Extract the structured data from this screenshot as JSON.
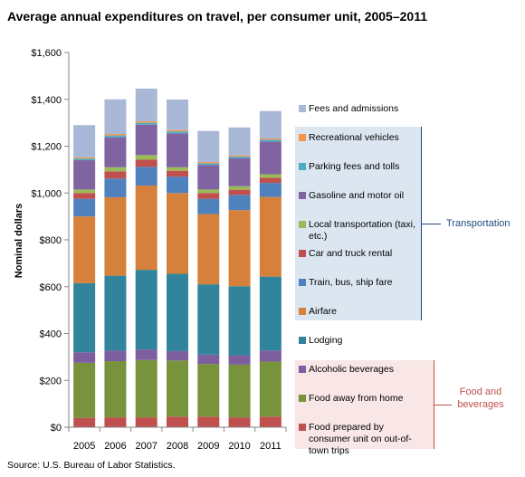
{
  "title": "Average annual expenditures on travel, per consumer unit, 2005–2011",
  "source": "Source: U.S. Bureau of Labor Statistics.",
  "groups": {
    "transportation": "Transportation",
    "food": "Food and beverages"
  },
  "chart_data": {
    "type": "bar",
    "stacked": true,
    "categories": [
      "2005",
      "2006",
      "2007",
      "2008",
      "2009",
      "2010",
      "2011"
    ],
    "ylabel": "Nominal dollars",
    "xlabel": "",
    "ylim": [
      0,
      1600
    ],
    "ytick_labels": [
      "$0",
      "$200",
      "$400",
      "$600",
      "$800",
      "$1,000",
      "$1,200",
      "$1,400",
      "$1,600"
    ],
    "legend_position": "right",
    "grid": false,
    "series": [
      {
        "name": "Food prepared by consumer unit on out-of-town trips",
        "color": "#c0504d",
        "values": [
          40,
          42,
          42,
          45,
          45,
          42,
          45
        ]
      },
      {
        "name": "Food away from home",
        "color": "#77933c",
        "values": [
          235,
          240,
          245,
          240,
          225,
          225,
          235
        ]
      },
      {
        "name": "Alcoholic beverages",
        "color": "#7d5fa0",
        "values": [
          45,
          45,
          45,
          40,
          40,
          40,
          48
        ]
      },
      {
        "name": "Lodging",
        "color": "#31849b",
        "values": [
          295,
          320,
          340,
          330,
          300,
          295,
          315
        ]
      },
      {
        "name": "Airfare",
        "color": "#d6813b",
        "values": [
          285,
          335,
          360,
          345,
          300,
          325,
          340
        ]
      },
      {
        "name": "Train, bus, ship fare",
        "color": "#4f81bd",
        "values": [
          75,
          80,
          80,
          70,
          65,
          65,
          60
        ]
      },
      {
        "name": "Car and truck rental",
        "color": "#c0504d",
        "values": [
          25,
          30,
          30,
          25,
          25,
          22,
          22
        ]
      },
      {
        "name": "Local transportation (taxi, etc.)",
        "color": "#9bbb59",
        "values": [
          15,
          18,
          20,
          15,
          15,
          15,
          15
        ]
      },
      {
        "name": "Gasoline and motor oil",
        "color": "#8064a2",
        "values": [
          125,
          128,
          130,
          145,
          105,
          120,
          140
        ]
      },
      {
        "name": "Parking fees and tolls",
        "color": "#4bacc6",
        "values": [
          7,
          8,
          8,
          8,
          7,
          7,
          8
        ]
      },
      {
        "name": "Recreational vehicles",
        "color": "#f79646",
        "values": [
          5,
          6,
          6,
          6,
          5,
          5,
          5
        ]
      },
      {
        "name": "Fees and admissions",
        "color": "#a9b8d6",
        "values": [
          138,
          148,
          140,
          130,
          133,
          119,
          117
        ]
      }
    ]
  }
}
